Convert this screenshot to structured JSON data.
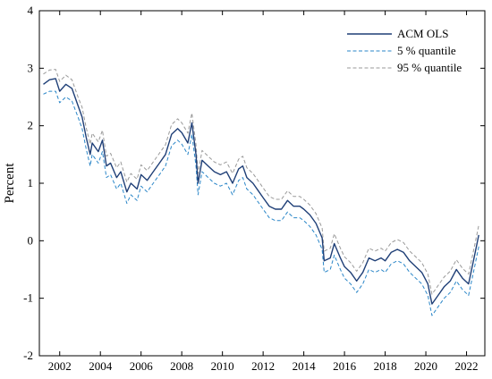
{
  "chart_data": {
    "type": "line",
    "title": "",
    "xlabel": "",
    "ylabel": "Percent",
    "xlim": [
      2001.0,
      2022.9
    ],
    "ylim": [
      -2,
      4
    ],
    "x_ticks": [
      2002,
      2004,
      2006,
      2008,
      2010,
      2012,
      2014,
      2016,
      2018,
      2020,
      2022
    ],
    "y_ticks": [
      -2,
      -1,
      0,
      1,
      2,
      3,
      4
    ],
    "grid": false,
    "legend_position": "top-right",
    "colors": {
      "ACM OLS": "#1f3f77",
      "5 % quantile": "#2a86c8",
      "95 % quantile": "#9a9a9a"
    },
    "x": [
      2001.2,
      2001.5,
      2001.8,
      2002.0,
      2002.3,
      2002.6,
      2002.9,
      2003.1,
      2003.3,
      2003.5,
      2003.6,
      2003.9,
      2004.1,
      2004.3,
      2004.5,
      2004.8,
      2005.0,
      2005.3,
      2005.5,
      2005.8,
      2006.0,
      2006.3,
      2006.6,
      2006.9,
      2007.2,
      2007.5,
      2007.8,
      2008.0,
      2008.3,
      2008.5,
      2008.7,
      2008.8,
      2009.0,
      2009.3,
      2009.6,
      2009.9,
      2010.2,
      2010.5,
      2010.8,
      2011.0,
      2011.2,
      2011.5,
      2011.8,
      2012.0,
      2012.3,
      2012.6,
      2012.9,
      2013.2,
      2013.5,
      2013.8,
      2014.0,
      2014.3,
      2014.6,
      2014.9,
      2015.0,
      2015.3,
      2015.5,
      2015.8,
      2016.0,
      2016.3,
      2016.6,
      2016.9,
      2017.2,
      2017.5,
      2017.8,
      2018.0,
      2018.3,
      2018.6,
      2018.9,
      2019.2,
      2019.5,
      2019.8,
      2020.1,
      2020.3,
      2020.6,
      2020.9,
      2021.2,
      2021.5,
      2021.8,
      2022.1,
      2022.4,
      2022.6
    ],
    "series": [
      {
        "name": "ACM OLS",
        "style": "solid",
        "values": [
          2.72,
          2.8,
          2.82,
          2.6,
          2.72,
          2.65,
          2.35,
          2.15,
          1.8,
          1.5,
          1.7,
          1.55,
          1.75,
          1.3,
          1.35,
          1.1,
          1.2,
          0.85,
          1.0,
          0.9,
          1.15,
          1.05,
          1.2,
          1.35,
          1.5,
          1.85,
          1.95,
          1.88,
          1.7,
          2.05,
          1.5,
          1.0,
          1.4,
          1.3,
          1.2,
          1.15,
          1.2,
          1.0,
          1.25,
          1.3,
          1.1,
          1.0,
          0.85,
          0.75,
          0.6,
          0.55,
          0.55,
          0.7,
          0.6,
          0.6,
          0.55,
          0.45,
          0.3,
          0.05,
          -0.35,
          -0.3,
          -0.05,
          -0.3,
          -0.45,
          -0.55,
          -0.7,
          -0.55,
          -0.3,
          -0.35,
          -0.3,
          -0.35,
          -0.2,
          -0.15,
          -0.2,
          -0.35,
          -0.45,
          -0.55,
          -0.75,
          -1.1,
          -0.95,
          -0.8,
          -0.7,
          -0.5,
          -0.65,
          -0.75,
          -0.25,
          0.1
        ]
      },
      {
        "name": "5 % quantile",
        "style": "dashed",
        "values": [
          2.55,
          2.6,
          2.6,
          2.4,
          2.5,
          2.43,
          2.15,
          1.95,
          1.6,
          1.3,
          1.5,
          1.35,
          1.55,
          1.1,
          1.15,
          0.9,
          1.0,
          0.65,
          0.8,
          0.7,
          0.95,
          0.85,
          1.0,
          1.15,
          1.3,
          1.65,
          1.75,
          1.68,
          1.5,
          1.85,
          1.3,
          0.8,
          1.2,
          1.1,
          1.0,
          0.95,
          1.0,
          0.8,
          1.05,
          1.1,
          0.9,
          0.8,
          0.65,
          0.55,
          0.4,
          0.35,
          0.35,
          0.5,
          0.4,
          0.4,
          0.35,
          0.25,
          0.1,
          -0.15,
          -0.55,
          -0.5,
          -0.25,
          -0.5,
          -0.65,
          -0.75,
          -0.9,
          -0.75,
          -0.5,
          -0.55,
          -0.5,
          -0.55,
          -0.4,
          -0.35,
          -0.4,
          -0.55,
          -0.65,
          -0.75,
          -0.95,
          -1.3,
          -1.15,
          -1.0,
          -0.9,
          -0.7,
          -0.85,
          -0.95,
          -0.45,
          -0.1
        ]
      },
      {
        "name": "95 % quantile",
        "style": "dashed",
        "values": [
          2.9,
          2.97,
          2.98,
          2.77,
          2.88,
          2.8,
          2.5,
          2.32,
          1.97,
          1.68,
          1.87,
          1.72,
          1.92,
          1.47,
          1.52,
          1.27,
          1.37,
          1.02,
          1.17,
          1.07,
          1.32,
          1.22,
          1.37,
          1.52,
          1.67,
          2.02,
          2.12,
          2.05,
          1.87,
          2.22,
          1.67,
          1.17,
          1.57,
          1.47,
          1.37,
          1.32,
          1.37,
          1.17,
          1.42,
          1.47,
          1.27,
          1.17,
          1.02,
          0.92,
          0.77,
          0.72,
          0.72,
          0.87,
          0.77,
          0.77,
          0.72,
          0.62,
          0.47,
          0.22,
          -0.18,
          -0.13,
          0.12,
          -0.13,
          -0.28,
          -0.38,
          -0.53,
          -0.38,
          -0.13,
          -0.18,
          -0.13,
          -0.18,
          -0.03,
          0.02,
          -0.03,
          -0.18,
          -0.28,
          -0.38,
          -0.58,
          -0.93,
          -0.78,
          -0.63,
          -0.53,
          -0.33,
          -0.48,
          -0.58,
          -0.08,
          0.27
        ]
      }
    ]
  }
}
